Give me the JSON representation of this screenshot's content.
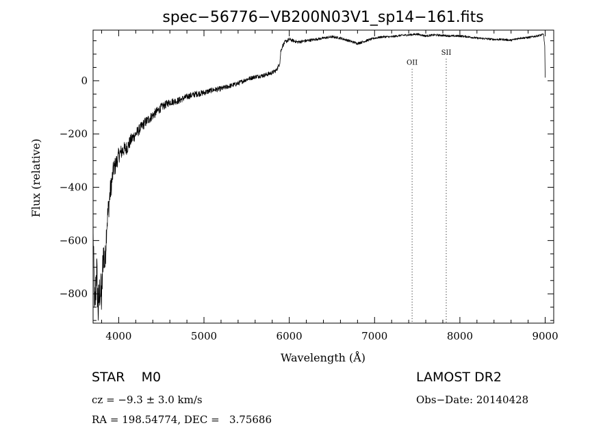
{
  "figure": {
    "object_class": "STAR",
    "subclass": "M0",
    "survey": "LAMOST DR2",
    "cz_label": "cz = −9.3 ± 3.0 km/s",
    "obs_date_label": "Obs−Date: 20140428",
    "radec_label": "RA = 198.54774, DEC =   3.75686"
  },
  "chart_data": {
    "type": "line",
    "title": "spec−56776−VB200N03V1_sp14−161.fits",
    "xlabel": "Wavelength (Å)",
    "ylabel": "Flux (relative)",
    "xlim": [
      3700,
      9100
    ],
    "ylim": [
      -910,
      190
    ],
    "x_ticks": [
      4000,
      5000,
      6000,
      7000,
      8000,
      9000
    ],
    "y_ticks": [
      0,
      -200,
      -400,
      -600,
      -800
    ],
    "x_tick_labels": [
      "4000",
      "5000",
      "6000",
      "7000",
      "8000",
      "9000"
    ],
    "y_tick_labels": [
      "0",
      "−200",
      "−400",
      "−600",
      "−800"
    ],
    "grid": false,
    "line_color": "#000000",
    "spectrum": {
      "x": [
        3700,
        3720,
        3740,
        3760,
        3780,
        3800,
        3820,
        3840,
        3860,
        3880,
        3900,
        3920,
        3940,
        3960,
        3980,
        4000,
        4050,
        4100,
        4150,
        4200,
        4250,
        4300,
        4400,
        4500,
        4600,
        4700,
        4800,
        4900,
        5000,
        5100,
        5200,
        5300,
        5400,
        5500,
        5600,
        5700,
        5800,
        5850,
        5880,
        5890,
        5900,
        5920,
        5950,
        6000,
        6050,
        6100,
        6200,
        6300,
        6400,
        6500,
        6600,
        6700,
        6800,
        6900,
        7000,
        7100,
        7200,
        7300,
        7400,
        7500,
        7600,
        7700,
        7800,
        7900,
        8000,
        8100,
        8200,
        8300,
        8400,
        8500,
        8600,
        8700,
        8800,
        8900,
        8960,
        8980,
        8995,
        9000
      ],
      "y": [
        -560,
        -880,
        -700,
        -860,
        -780,
        -820,
        -640,
        -690,
        -540,
        -480,
        -420,
        -380,
        -330,
        -320,
        -300,
        -280,
        -260,
        -250,
        -220,
        -200,
        -180,
        -160,
        -130,
        -100,
        -80,
        -75,
        -60,
        -50,
        -45,
        -35,
        -30,
        -20,
        -10,
        5,
        15,
        20,
        30,
        40,
        60,
        70,
        110,
        130,
        145,
        155,
        150,
        145,
        150,
        155,
        160,
        165,
        160,
        150,
        140,
        150,
        160,
        165,
        165,
        170,
        172,
        175,
        168,
        172,
        170,
        168,
        168,
        165,
        160,
        158,
        155,
        155,
        152,
        160,
        162,
        168,
        172,
        175,
        130,
        10
      ],
      "noise": [
        40,
        90,
        90,
        90,
        80,
        80,
        70,
        60,
        50,
        50,
        45,
        40,
        35,
        35,
        30,
        30,
        28,
        26,
        24,
        22,
        20,
        20,
        18,
        16,
        14,
        13,
        12,
        12,
        11,
        10,
        10,
        9,
        9,
        8,
        8,
        8,
        8,
        8,
        8,
        8,
        8,
        7,
        7,
        7,
        6,
        6,
        6,
        5,
        5,
        5,
        5,
        5,
        5,
        5,
        4,
        4,
        4,
        4,
        4,
        4,
        4,
        4,
        4,
        4,
        4,
        4,
        4,
        4,
        4,
        4,
        4,
        4,
        4,
        4,
        4,
        4,
        4,
        4
      ]
    },
    "lines": [
      {
        "label": "OII",
        "wavelength": 7440,
        "label_flux": 70,
        "color": "#000000"
      },
      {
        "label": "SII",
        "wavelength": 7840,
        "label_flux": 108,
        "color": "#000000"
      }
    ]
  }
}
